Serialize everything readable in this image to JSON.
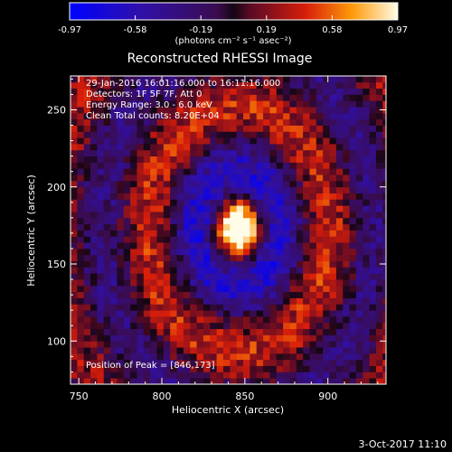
{
  "chart_data": {
    "type": "heatmap",
    "title": "Reconstructed RHESSI Image",
    "xlabel": "Heliocentric X (arcsec)",
    "ylabel": "Heliocentric Y (arcsec)",
    "xlim": [
      745,
      935
    ],
    "ylim": [
      72,
      272
    ],
    "x_ticks": [
      750,
      800,
      850,
      900
    ],
    "y_ticks": [
      100,
      150,
      200,
      250
    ],
    "colorbar": {
      "min": -0.97,
      "max": 0.97,
      "ticks": [
        "-0.97",
        "-0.58",
        "-0.19",
        "0.19",
        "0.58",
        "0.97"
      ],
      "units_label": "(photons cm⁻² s⁻¹ asec⁻²)"
    },
    "annotations": [
      "29-Jan-2016 16:01:16.000 to 16:11:16.000",
      "Detectors: 1F 5F 7F, Att 0",
      "Energy Range: 3.0 - 6.0 keV",
      "Clean     Total counts: 8.20E+04"
    ],
    "peak_label": "Position of Peak = [846,173]",
    "peak": [
      846,
      173
    ],
    "grid": false
  },
  "footer_timestamp": "3-Oct-2017 11:10"
}
